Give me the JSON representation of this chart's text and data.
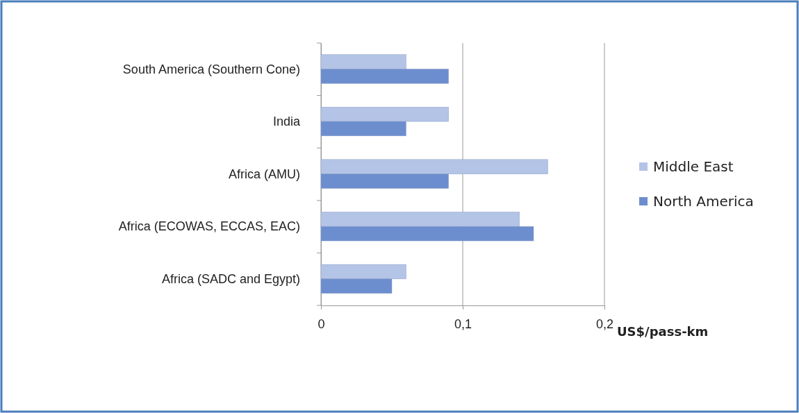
{
  "chart_data": {
    "type": "bar",
    "orientation": "horizontal",
    "categories": [
      "South America (Southern Cone)",
      "India",
      "Africa (AMU)",
      "Africa (ECOWAS, ECCAS, EAC)",
      "Africa (SADC and Egypt)"
    ],
    "series": [
      {
        "name": "Middle East",
        "color": "#b4c4e6",
        "values": [
          0.06,
          0.09,
          0.16,
          0.14,
          0.06
        ]
      },
      {
        "name": "North America",
        "color": "#6d8ece",
        "values": [
          0.09,
          0.06,
          0.09,
          0.15,
          0.05
        ]
      }
    ],
    "xlabel": "US$/pass-km",
    "xlim": [
      0,
      0.2
    ],
    "xticks": [
      0,
      {
        "value": 0.1,
        "label": "0,1"
      },
      {
        "value": 0.2,
        "label": "0,2"
      }
    ],
    "grid": "x",
    "legend": "right"
  }
}
